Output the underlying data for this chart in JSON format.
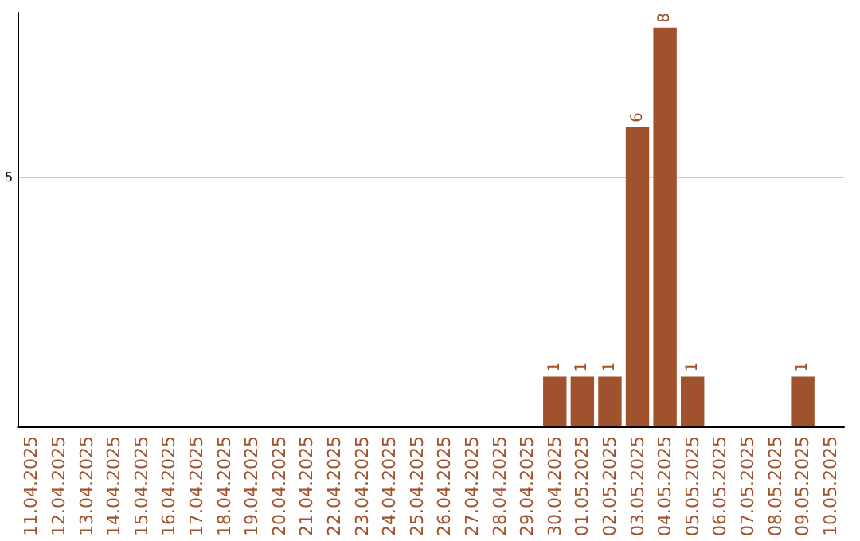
{
  "chart_data": {
    "type": "bar",
    "categories": [
      "11.04.2025",
      "12.04.2025",
      "13.04.2025",
      "14.04.2025",
      "15.04.2025",
      "16.04.2025",
      "17.04.2025",
      "18.04.2025",
      "19.04.2025",
      "20.04.2025",
      "21.04.2025",
      "22.04.2025",
      "23.04.2025",
      "24.04.2025",
      "25.04.2025",
      "26.04.2025",
      "27.04.2025",
      "28.04.2025",
      "29.04.2025",
      "30.04.2025",
      "01.05.2025",
      "02.05.2025",
      "03.05.2025",
      "04.05.2025",
      "05.05.2025",
      "06.05.2025",
      "07.05.2025",
      "08.05.2025",
      "09.05.2025",
      "10.05.2025"
    ],
    "values": [
      null,
      null,
      null,
      null,
      null,
      null,
      null,
      null,
      null,
      null,
      null,
      null,
      null,
      null,
      null,
      null,
      null,
      null,
      null,
      1,
      1,
      1,
      6,
      8,
      1,
      null,
      null,
      null,
      1,
      null
    ],
    "data_labels": true,
    "color": "#a0522d",
    "ylim": [
      0,
      8.3
    ],
    "yticks": [
      5
    ],
    "grid": "y"
  }
}
